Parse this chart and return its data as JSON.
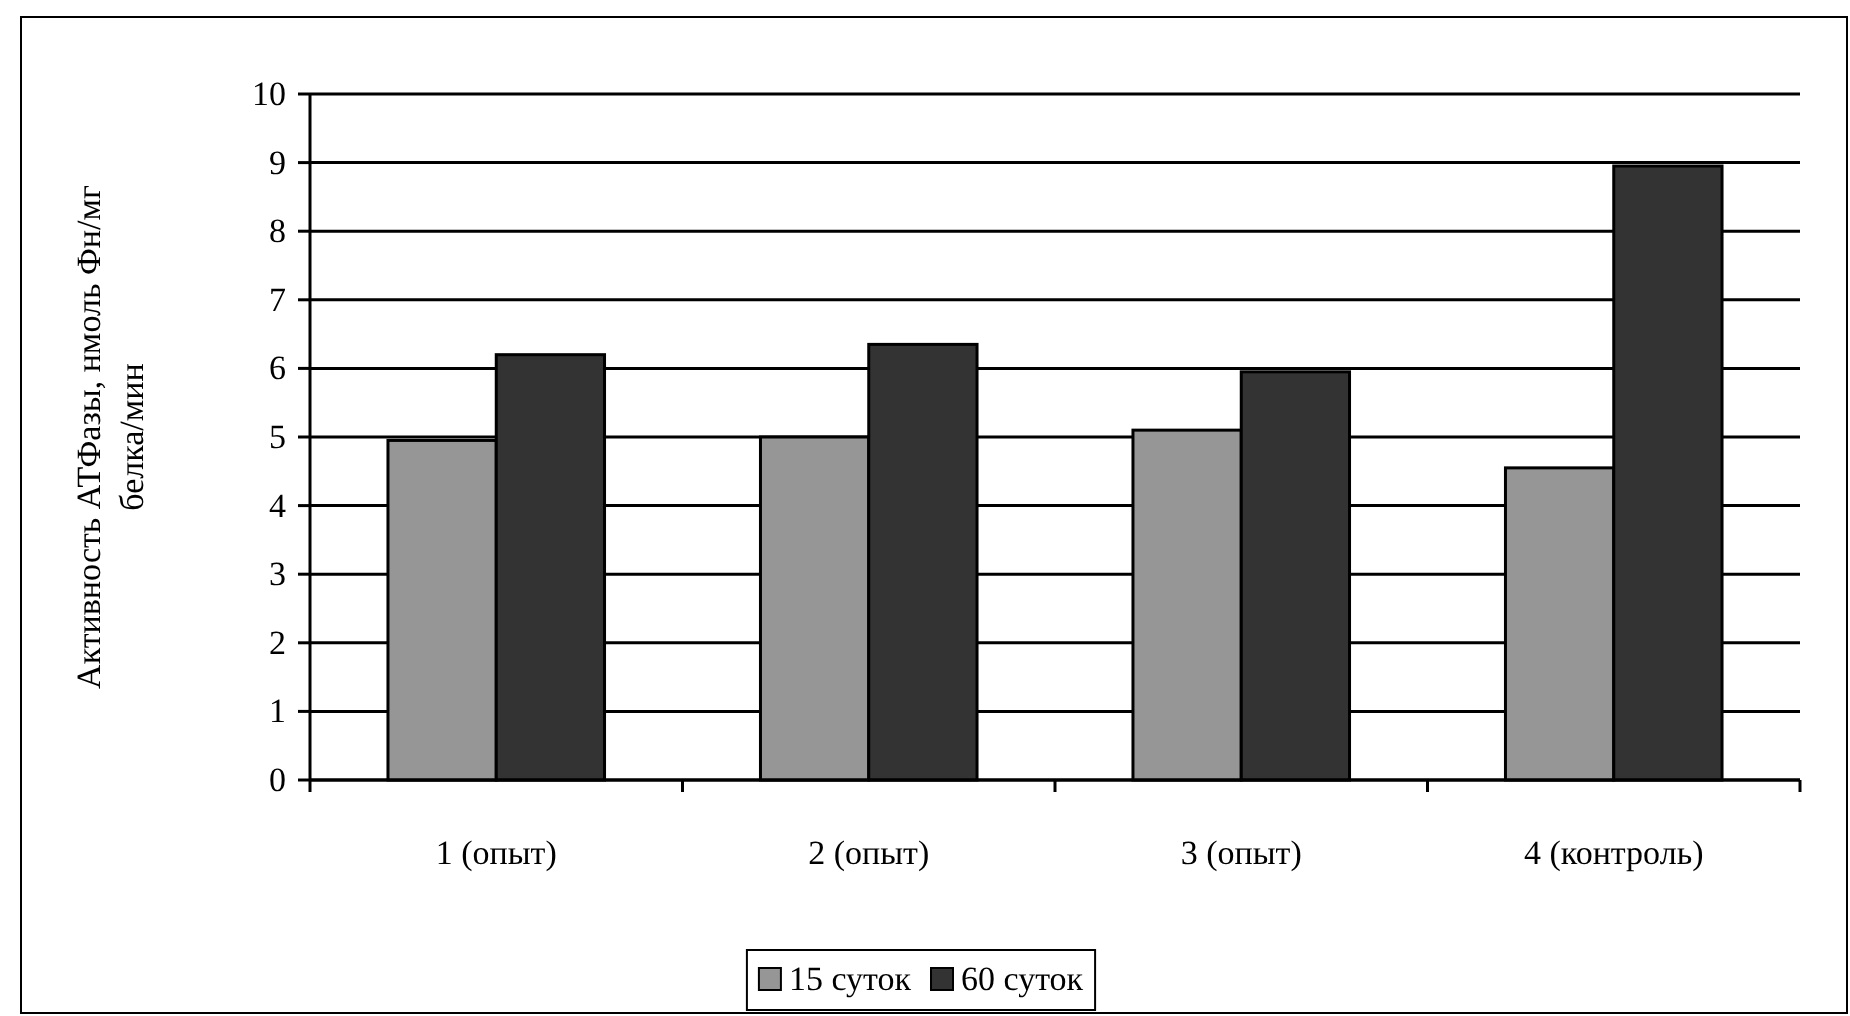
{
  "chart_data": {
    "type": "bar",
    "ylabel": "Активность АТФазы, нмоль Фн/мг\nбелка/мин",
    "categories": [
      "1 (опыт)",
      "2 (опыт)",
      "3 (опыт)",
      "4 (контроль)"
    ],
    "series": [
      {
        "name": "15 суток",
        "color": "#969696",
        "values": [
          4.95,
          5.0,
          5.1,
          4.55
        ]
      },
      {
        "name": "60 суток",
        "color": "#333333",
        "values": [
          6.2,
          6.35,
          5.95,
          8.95
        ]
      }
    ],
    "ylim": [
      0,
      10
    ],
    "yticks": [
      0,
      1,
      2,
      3,
      4,
      5,
      6,
      7,
      8,
      9,
      10
    ],
    "grid": "y",
    "legend": "bottom"
  }
}
